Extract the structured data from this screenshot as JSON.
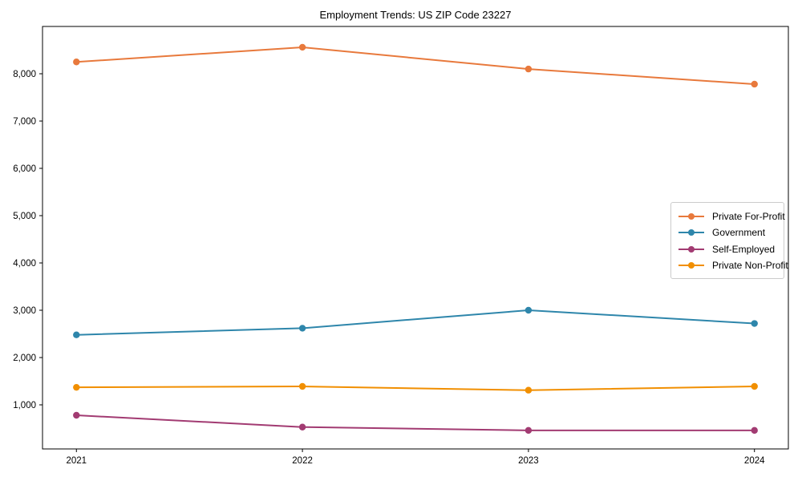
{
  "figure": {
    "background": "#ffffff",
    "text_color": "#000000",
    "spine_color": "#000000"
  },
  "chart_data": {
    "type": "line",
    "title": "Employment Trends: US ZIP Code 23227",
    "xlabel": "",
    "ylabel": "",
    "grid": false,
    "legend_position": "right",
    "marker": "circle",
    "x": [
      2021,
      2022,
      2023,
      2024
    ],
    "x_tick_labels": [
      "2021",
      "2022",
      "2023",
      "2024"
    ],
    "xlim": [
      2020.85,
      2024.15
    ],
    "ylim": [
      68,
      9000
    ],
    "y_ticks": [
      1000,
      2000,
      3000,
      4000,
      5000,
      6000,
      7000,
      8000
    ],
    "y_tick_labels": [
      "1,000",
      "2,000",
      "3,000",
      "4,000",
      "5,000",
      "6,000",
      "7,000",
      "8,000"
    ],
    "series": [
      {
        "name": "Private For-Profit",
        "color": "#E8793C",
        "values": [
          8250,
          8560,
          8100,
          7780
        ]
      },
      {
        "name": "Government",
        "color": "#2E86AB",
        "values": [
          2480,
          2620,
          3000,
          2720
        ]
      },
      {
        "name": "Self-Employed",
        "color": "#A23B72",
        "values": [
          780,
          530,
          460,
          460
        ]
      },
      {
        "name": "Private Non-Profit",
        "color": "#F18F01",
        "values": [
          1370,
          1390,
          1310,
          1390
        ]
      }
    ]
  }
}
